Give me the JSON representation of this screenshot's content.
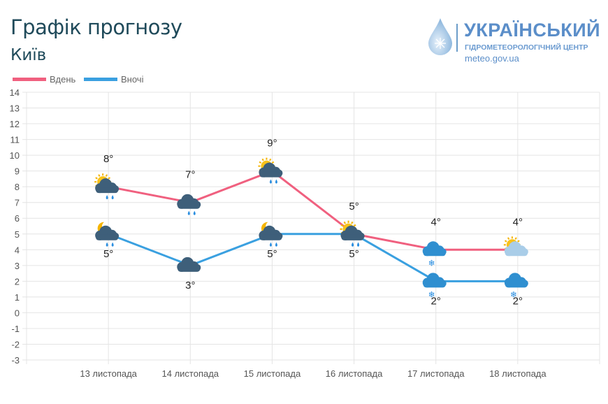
{
  "header": {
    "title": "Графік прогнозу",
    "city": "Київ"
  },
  "logo": {
    "line1": "УКРАЇНСЬКИЙ",
    "line2": "ГІДРОМЕТЕОРОЛОГІЧНИЙ ЦЕНТР",
    "line3": "meteo.gov.ua"
  },
  "chart_data": {
    "type": "line",
    "title": "Графік прогнозу",
    "categories": [
      "13 листопада",
      "14 листопада",
      "15 листопада",
      "16 листопада",
      "17 листопада",
      "18 листопада"
    ],
    "series": [
      {
        "name": "Вдень",
        "color": "#f0607f",
        "values": [
          8,
          7,
          9,
          5,
          4,
          4
        ],
        "icons": [
          "sun-cloud-rain",
          "cloud-rain",
          "sun-cloud-rain",
          "sun-cloud-rain",
          "cloud-snow",
          "sun-cloud"
        ]
      },
      {
        "name": "Вночі",
        "color": "#3aa0e0",
        "values": [
          5,
          3,
          5,
          5,
          2,
          2
        ],
        "icons": [
          "moon-cloud-rain",
          "cloud",
          "moon-cloud-rain",
          "sun-cloud-rain",
          "cloud-snow",
          "cloud-snow"
        ]
      }
    ],
    "ylim": [
      -3,
      14
    ],
    "yticks": [
      14,
      13,
      12,
      11,
      10,
      9,
      8,
      7,
      6,
      5,
      4,
      3,
      2,
      1,
      0,
      -1,
      -2,
      -3
    ],
    "unit": "°",
    "grid": true,
    "legend": "top-left"
  }
}
